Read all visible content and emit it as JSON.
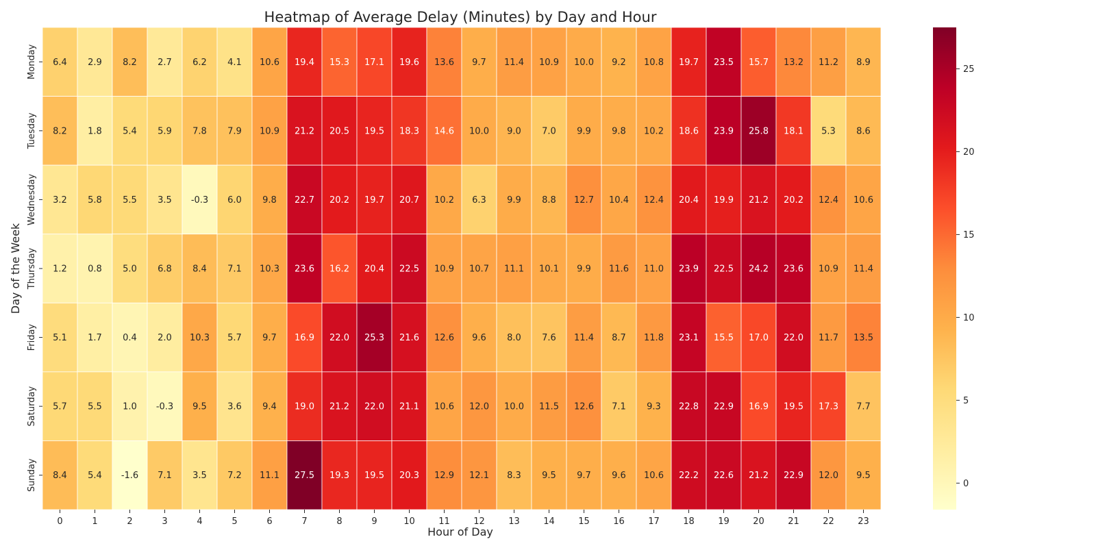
{
  "chart_data": {
    "type": "heatmap",
    "title": "Heatmap of Average Delay (Minutes) by Day and Hour",
    "xlabel": "Hour of Day",
    "ylabel": "Day of the Week",
    "x_categories": [
      "0",
      "1",
      "2",
      "3",
      "4",
      "5",
      "6",
      "7",
      "8",
      "9",
      "10",
      "11",
      "12",
      "13",
      "14",
      "15",
      "16",
      "17",
      "18",
      "19",
      "20",
      "21",
      "22",
      "23"
    ],
    "y_categories": [
      "Monday",
      "Tuesday",
      "Wednesday",
      "Thursday",
      "Friday",
      "Saturday",
      "Sunday"
    ],
    "values": [
      [
        6.4,
        2.9,
        8.2,
        2.7,
        6.2,
        4.1,
        10.6,
        19.4,
        15.3,
        17.1,
        19.6,
        13.6,
        9.7,
        11.4,
        10.9,
        10.0,
        9.2,
        10.8,
        19.7,
        23.5,
        15.7,
        13.2,
        11.2,
        8.9
      ],
      [
        8.2,
        1.8,
        5.4,
        5.9,
        7.8,
        7.9,
        10.9,
        21.2,
        20.5,
        19.5,
        18.3,
        14.6,
        10.0,
        9.0,
        7.0,
        9.9,
        9.8,
        10.2,
        18.6,
        23.9,
        25.8,
        18.1,
        5.3,
        8.6
      ],
      [
        3.2,
        5.8,
        5.5,
        3.5,
        -0.3,
        6.0,
        9.8,
        22.7,
        20.2,
        19.7,
        20.7,
        10.2,
        6.3,
        9.9,
        8.8,
        12.7,
        10.4,
        12.4,
        20.4,
        19.9,
        21.2,
        20.2,
        12.4,
        10.6
      ],
      [
        1.2,
        0.8,
        5.0,
        6.8,
        8.4,
        7.1,
        10.3,
        23.6,
        16.2,
        20.4,
        22.5,
        10.9,
        10.7,
        11.1,
        10.1,
        9.9,
        11.6,
        11.0,
        23.9,
        22.5,
        24.2,
        23.6,
        10.9,
        11.4
      ],
      [
        5.1,
        1.7,
        0.4,
        2.0,
        10.3,
        5.7,
        9.7,
        16.9,
        22.0,
        25.3,
        21.6,
        12.6,
        9.6,
        8.0,
        7.6,
        11.4,
        8.7,
        11.8,
        23.1,
        15.5,
        17.0,
        22.0,
        11.7,
        13.5
      ],
      [
        5.7,
        5.5,
        1.0,
        -0.3,
        9.5,
        3.6,
        9.4,
        19.0,
        21.2,
        22.0,
        21.1,
        10.6,
        12.0,
        10.0,
        11.5,
        12.6,
        7.1,
        9.3,
        22.8,
        22.9,
        16.9,
        19.5,
        17.3,
        7.7
      ],
      [
        8.4,
        5.4,
        -1.6,
        7.1,
        3.5,
        7.2,
        11.1,
        27.5,
        19.3,
        19.5,
        20.3,
        12.9,
        12.1,
        8.3,
        9.5,
        9.7,
        9.6,
        10.6,
        22.2,
        22.6,
        21.2,
        22.9,
        12.0,
        9.5
      ]
    ],
    "value_format_decimals": 1,
    "colormap": "YlOrRd",
    "colorbar": {
      "range": [
        -1.6,
        27.5
      ],
      "ticks": [
        "0",
        "5",
        "10",
        "15",
        "20",
        "25"
      ]
    },
    "grid": false,
    "legend": "colorbar-right"
  }
}
